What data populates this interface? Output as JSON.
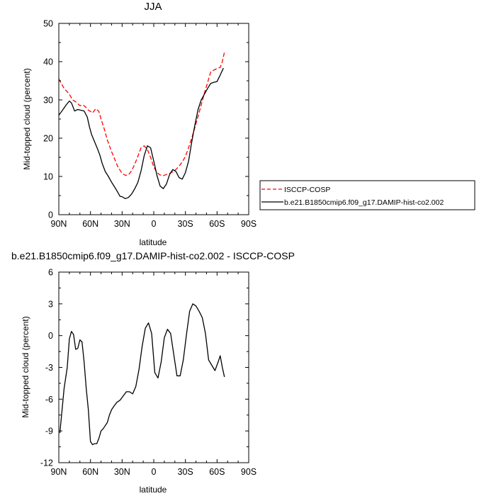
{
  "chart_data": [
    {
      "type": "line",
      "title": "JJA",
      "xlabel": "latitude",
      "ylabel": "Mid-topped cloud (percent)",
      "xlim": [
        -90,
        90
      ],
      "ylim": [
        0,
        50
      ],
      "xticks": [
        -90,
        -60,
        -30,
        0,
        30,
        60,
        90
      ],
      "xtick_labels": [
        "90N",
        "60N",
        "30N",
        "0",
        "30S",
        "60S",
        "90S"
      ],
      "yticks": [
        0,
        10,
        20,
        30,
        40,
        50
      ],
      "ytick_labels": [
        "0",
        "10",
        "20",
        "30",
        "40",
        "50"
      ],
      "grid": false,
      "legend_position": "right",
      "series": [
        {
          "name": "ISCCP-COSP",
          "color": "#ff0000",
          "dash": "dashed",
          "x": [
            -90,
            -85,
            -80,
            -77,
            -74,
            -70,
            -67,
            -64,
            -62,
            -60,
            -58,
            -55,
            -52,
            -50,
            -47,
            -44,
            -40,
            -37,
            -34,
            -30,
            -27,
            -24,
            -21,
            -18,
            -15,
            -12,
            -9,
            -6,
            -3,
            0,
            3,
            6,
            9,
            12,
            15,
            18,
            21,
            24,
            27,
            30,
            33,
            36,
            39,
            42,
            45,
            48,
            51,
            54,
            57,
            60,
            63,
            65,
            67
          ],
          "y": [
            35.5,
            33,
            31.5,
            30,
            29.5,
            28.5,
            28.7,
            28,
            27.3,
            27,
            26.6,
            27.7,
            27,
            25,
            22.5,
            19.5,
            16.5,
            14.5,
            12.5,
            10.8,
            10.3,
            10.4,
            11.5,
            13.2,
            15.3,
            17.5,
            18,
            17,
            15,
            12.5,
            11,
            10.4,
            10.2,
            10.5,
            10.8,
            11.2,
            11.8,
            12.7,
            13.8,
            15.2,
            17.5,
            20,
            22.8,
            25.7,
            28.7,
            31.8,
            34.5,
            37.3,
            37.8,
            38.2,
            38.5,
            40,
            42.5
          ]
        },
        {
          "name": "b.e21.B1850cmip6.f09_g17.DAMIP-hist-co2.002",
          "color": "#000000",
          "dash": "solid",
          "x": [
            -90,
            -86,
            -83,
            -80,
            -78,
            -75,
            -72,
            -69,
            -66,
            -63,
            -61,
            -59,
            -56,
            -53,
            -51,
            -49,
            -46,
            -43,
            -40,
            -37,
            -34,
            -32,
            -30,
            -27,
            -24,
            -21,
            -18,
            -15,
            -12,
            -9,
            -6,
            -3,
            0,
            3,
            6,
            9,
            12,
            15,
            18,
            21,
            24,
            27,
            30,
            33,
            36,
            39,
            42,
            45,
            48,
            51,
            54,
            57,
            60,
            63,
            66
          ],
          "y": [
            26,
            27.5,
            28.7,
            29.7,
            29.2,
            27.1,
            27.5,
            27.3,
            27.1,
            25.5,
            23,
            21,
            19,
            17,
            15.5,
            13.5,
            11.3,
            10,
            8.5,
            7.2,
            5.8,
            4.8,
            4.7,
            4.2,
            4.5,
            5.4,
            6.8,
            8.5,
            11.5,
            15.5,
            18,
            17.5,
            14,
            10.3,
            7.5,
            6.8,
            8,
            10.5,
            11.8,
            11.3,
            9.7,
            9.3,
            11,
            14,
            19,
            23.5,
            27.5,
            30,
            31.5,
            33,
            34.3,
            34.6,
            34.8,
            36.5,
            38.3
          ]
        }
      ]
    },
    {
      "type": "line",
      "title": "b.e21.B1850cmip6.f09_g17.DAMIP-hist-co2.002 - ISCCP-COSP",
      "xlabel": "latitude",
      "ylabel": "Mid-topped cloud (percent)",
      "xlim": [
        -90,
        90
      ],
      "ylim": [
        -12,
        6
      ],
      "xticks": [
        -90,
        -60,
        -30,
        0,
        30,
        60,
        90
      ],
      "xtick_labels": [
        "90N",
        "60N",
        "30N",
        "0",
        "30S",
        "60S",
        "90S"
      ],
      "yticks": [
        -12,
        -9,
        -6,
        -3,
        0,
        3,
        6
      ],
      "ytick_labels": [
        "-12",
        "-9",
        "-6",
        "-3",
        "0",
        "3",
        "6"
      ],
      "grid": false,
      "series": [
        {
          "color": "#000000",
          "x": [
            -89,
            -85,
            -82,
            -80,
            -78,
            -76,
            -74,
            -72,
            -70,
            -68,
            -66,
            -64,
            -62,
            -60,
            -58,
            -56,
            -54,
            -52,
            -50,
            -48,
            -46,
            -44,
            -42,
            -40,
            -38,
            -35,
            -32,
            -29,
            -26,
            -23,
            -20,
            -17,
            -14,
            -11,
            -8,
            -5,
            -2,
            1,
            4,
            7,
            10,
            13,
            16,
            19,
            22,
            25,
            28,
            31,
            34,
            37,
            40,
            43,
            46,
            49,
            52,
            55,
            58,
            61,
            63,
            65,
            67
          ],
          "y": [
            -9.2,
            -5,
            -3,
            -0.3,
            0.4,
            0.1,
            -1.3,
            -1.2,
            -0.4,
            -0.6,
            -2.5,
            -5,
            -7,
            -10,
            -10.3,
            -10.2,
            -10.2,
            -9.7,
            -9,
            -8.8,
            -8.5,
            -8.2,
            -7.5,
            -7,
            -6.7,
            -6.3,
            -6.1,
            -5.7,
            -5.3,
            -5.3,
            -5.5,
            -4.8,
            -3.2,
            -1,
            0.7,
            1.2,
            0.2,
            -3.5,
            -4,
            -2.5,
            -0.2,
            0.6,
            0.2,
            -1.8,
            -3.8,
            -3.8,
            -2.3,
            0.1,
            2.3,
            3,
            2.8,
            2.3,
            1.7,
            0.2,
            -2.3,
            -2.8,
            -3.3,
            -2.5,
            -1.9,
            -3,
            -3.9
          ]
        }
      ]
    }
  ]
}
